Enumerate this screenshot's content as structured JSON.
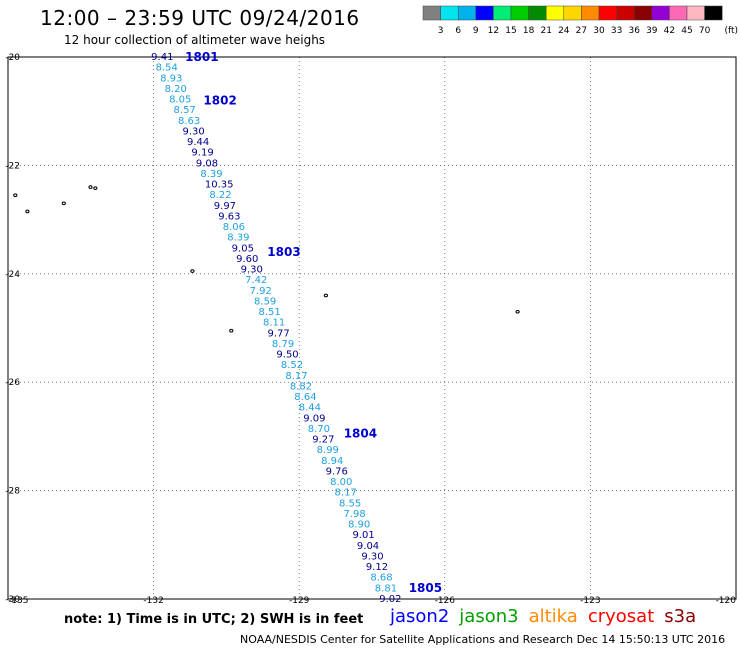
{
  "header": {
    "title": "12:00 – 23:59 UTC 09/24/2016",
    "subtitle": "12 hour collection of altimeter wave heighs"
  },
  "colorbar": {
    "labels": [
      "3",
      "6",
      "9",
      "12",
      "15",
      "18",
      "21",
      "24",
      "27",
      "30",
      "33",
      "36",
      "39",
      "42",
      "45",
      "70"
    ],
    "unit": "(ft)",
    "colors": [
      "#808080",
      "#00e5ee",
      "#00b2ee",
      "#0000ff",
      "#00ee76",
      "#00cd00",
      "#008b00",
      "#ffff00",
      "#ffd700",
      "#ff8c00",
      "#ff0000",
      "#cd0000",
      "#8b0000",
      "#9400d3",
      "#ff69b4",
      "#ffb6c1",
      "#000000"
    ]
  },
  "map": {
    "lat_labels": [
      "-20",
      "-22",
      "-24",
      "-26",
      "-28",
      "-30"
    ],
    "lon_labels": [
      "-135",
      "-132",
      "-129",
      "-126",
      "-123",
      "-120"
    ],
    "track_markers": [
      {
        "label": "1801",
        "lat": -20.0
      },
      {
        "label": "1802",
        "lat": -20.8
      },
      {
        "label": "1803",
        "lat": -23.6
      },
      {
        "label": "1804",
        "lat": -26.95
      },
      {
        "label": "1805",
        "lat": -29.8
      }
    ],
    "swh_values": [
      "9.41",
      "8.54",
      "8.93",
      "8.20",
      "8.05",
      "8.57",
      "8.63",
      "9.30",
      "9.44",
      "9.19",
      "9.08",
      "8.39",
      "10.35",
      "8.22",
      "9.97",
      "9.63",
      "8.06",
      "8.39",
      "9.05",
      "9.60",
      "9.30",
      "7.42",
      "7.92",
      "8.59",
      "8.51",
      "8.11",
      "9.77",
      "8.79",
      "9.50",
      "8.52",
      "8.17",
      "8.82",
      "8.64",
      "8.44",
      "9.09",
      "8.70",
      "9.27",
      "8.99",
      "8.94",
      "9.76",
      "8.00",
      "8.17",
      "8.55",
      "7.98",
      "8.90",
      "9.01",
      "9.04",
      "9.30",
      "9.12",
      "8.68",
      "8.81",
      "9.02"
    ]
  },
  "footer": {
    "note": "note:  1) Time is in UTC;  2) SWH is in feet",
    "satellites": [
      {
        "name": "jason2",
        "color": "#0000ff"
      },
      {
        "name": "jason3",
        "color": "#00a000"
      },
      {
        "name": "altika",
        "color": "#ff8c00"
      },
      {
        "name": "cryosat",
        "color": "#ff0000"
      },
      {
        "name": "s3a",
        "color": "#8b0000"
      }
    ],
    "credit": "NOAA/NESDIS Center for Satellite Applications and Research    Dec 14 15:50:13 UTC 2016"
  }
}
